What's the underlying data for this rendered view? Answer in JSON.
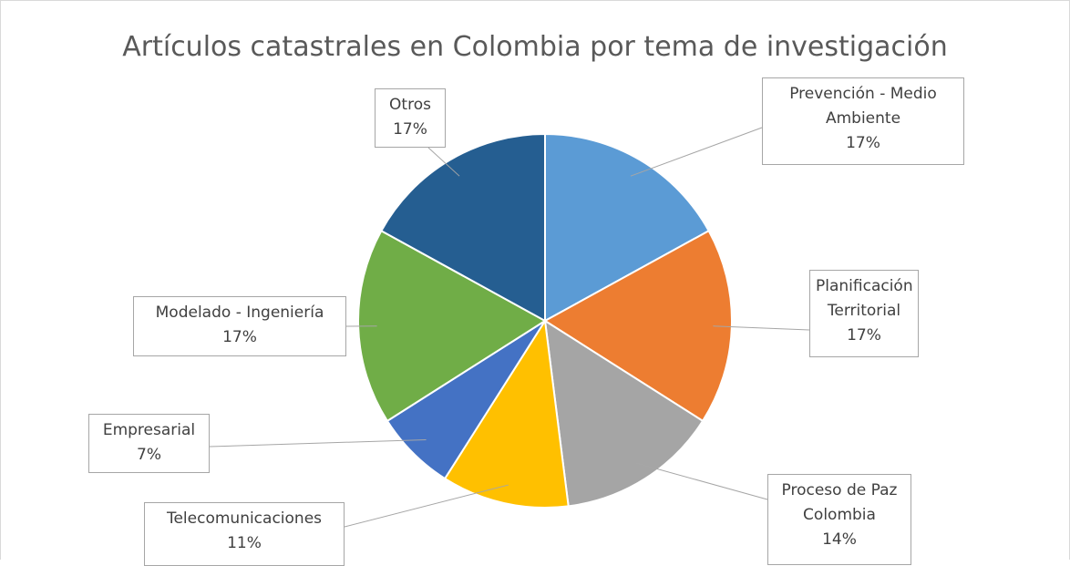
{
  "chart_data": {
    "type": "pie",
    "title": "Artículos catastrales en Colombia por tema de investigación",
    "categories": [
      "Prevención - Medio Ambiente",
      "Planificación Territorial",
      "Proceso de Paz Colombia",
      "Telecomunicaciones",
      "Empresarial",
      "Modelado - Ingeniería",
      "Otros"
    ],
    "values": [
      17,
      17,
      14,
      11,
      7,
      17,
      17
    ],
    "value_labels": [
      "17%",
      "17%",
      "14%",
      "11%",
      "7%",
      "17%",
      "17%"
    ],
    "colors": [
      "#5b9bd5",
      "#ed7d31",
      "#a5a5a5",
      "#ffc000",
      "#4472c4",
      "#70ad47",
      "#255e91"
    ]
  }
}
